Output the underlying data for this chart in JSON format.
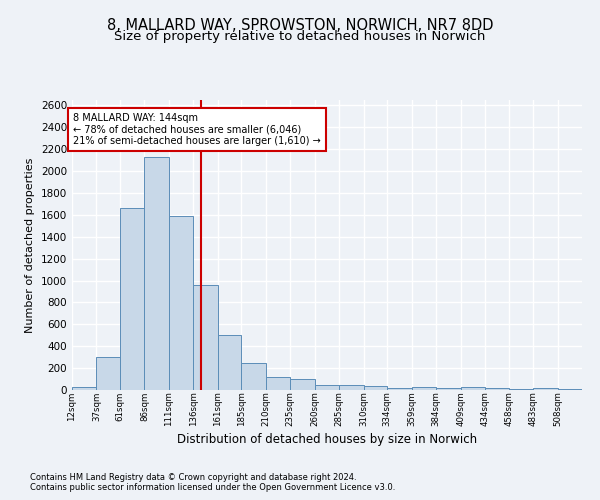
{
  "title1": "8, MALLARD WAY, SPROWSTON, NORWICH, NR7 8DD",
  "title2": "Size of property relative to detached houses in Norwich",
  "xlabel": "Distribution of detached houses by size in Norwich",
  "ylabel": "Number of detached properties",
  "footnote1": "Contains HM Land Registry data © Crown copyright and database right 2024.",
  "footnote2": "Contains public sector information licensed under the Open Government Licence v3.0.",
  "annotation_line1": "8 MALLARD WAY: 144sqm",
  "annotation_line2": "← 78% of detached houses are smaller (6,046)",
  "annotation_line3": "21% of semi-detached houses are larger (1,610) →",
  "property_size": 144,
  "bar_categories": [
    "12sqm",
    "37sqm",
    "61sqm",
    "86sqm",
    "111sqm",
    "136sqm",
    "161sqm",
    "185sqm",
    "210sqm",
    "235sqm",
    "260sqm",
    "285sqm",
    "310sqm",
    "334sqm",
    "359sqm",
    "384sqm",
    "409sqm",
    "434sqm",
    "458sqm",
    "483sqm",
    "508sqm"
  ],
  "bar_values": [
    25,
    300,
    1660,
    2130,
    1590,
    960,
    505,
    250,
    120,
    100,
    50,
    50,
    35,
    20,
    25,
    20,
    25,
    20,
    5,
    20,
    5
  ],
  "bar_edges": [
    12,
    37,
    61,
    86,
    111,
    136,
    161,
    185,
    210,
    235,
    260,
    285,
    310,
    334,
    359,
    384,
    409,
    434,
    458,
    483,
    508,
    533
  ],
  "bar_color": "#c8d8e8",
  "bar_edge_color": "#5b8db8",
  "vline_x": 144,
  "vline_color": "#cc0000",
  "ylim": [
    0,
    2650
  ],
  "yticks": [
    0,
    200,
    400,
    600,
    800,
    1000,
    1200,
    1400,
    1600,
    1800,
    2000,
    2200,
    2400,
    2600
  ],
  "bg_color": "#eef2f7",
  "grid_color": "#ffffff",
  "annotation_box_color": "#ffffff",
  "annotation_box_edge": "#cc0000",
  "title1_fontsize": 10.5,
  "title2_fontsize": 9.5
}
